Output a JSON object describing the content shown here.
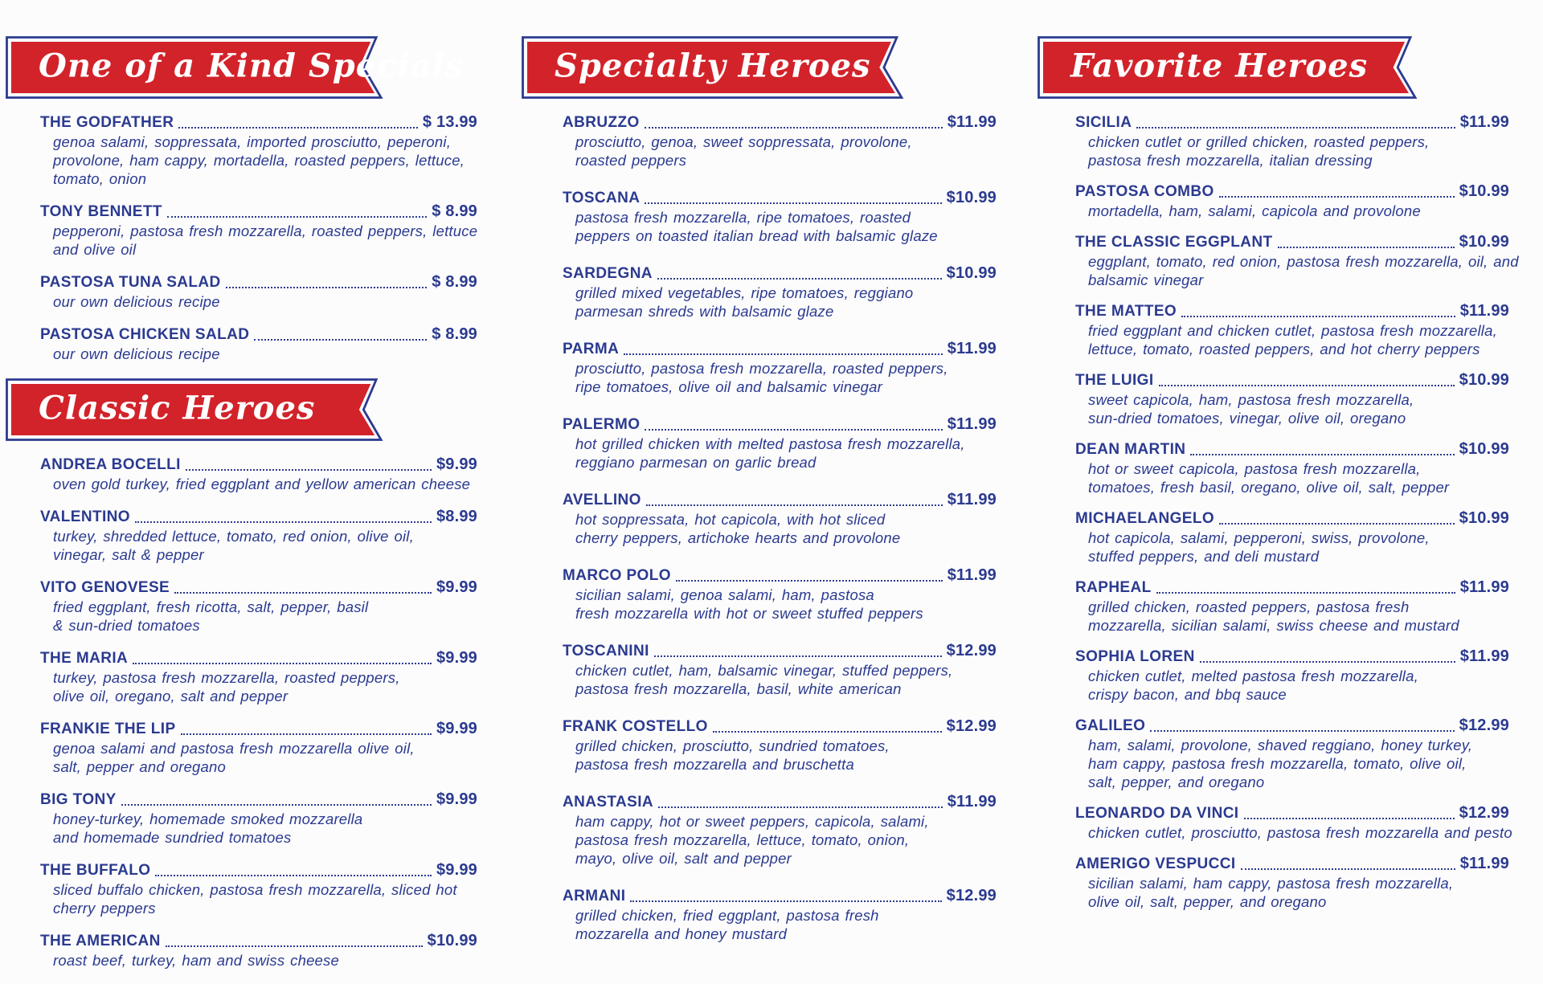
{
  "colors": {
    "red": "#d2232a",
    "navy": "#2b3a8f",
    "banner_text": "#ffffff",
    "background": "#fcfcfd"
  },
  "sections": [
    {
      "title": "One of a Kind Specials",
      "items": [
        {
          "name": "THE GODFATHER",
          "price": "$ 13.99",
          "desc_lines": [
            "genoa salami, soppressata, imported prosciutto, peperoni,",
            "provolone, ham cappy, mortadella, roasted peppers, lettuce,",
            "tomato, onion"
          ]
        },
        {
          "name": "TONY BENNETT",
          "price": "$ 8.99",
          "desc_lines": [
            "pepperoni, pastosa fresh mozzarella, roasted peppers, lettuce",
            "and olive oil"
          ]
        },
        {
          "name": "PASTOSA TUNA SALAD",
          "price": "$ 8.99",
          "desc_lines": [
            "our own delicious recipe"
          ]
        },
        {
          "name": "PASTOSA CHICKEN SALAD",
          "price": "$ 8.99",
          "desc_lines": [
            "our own delicious recipe"
          ]
        }
      ]
    },
    {
      "title": "Classic Heroes",
      "items": [
        {
          "name": "ANDREA BOCELLI",
          "price": "$9.99",
          "desc_lines": [
            "oven gold turkey, fried eggplant and yellow american cheese"
          ]
        },
        {
          "name": "VALENTINO",
          "price": "$8.99",
          "desc_lines": [
            "turkey, shredded lettuce, tomato, red onion, olive oil,",
            "vinegar, salt & pepper"
          ]
        },
        {
          "name": "VITO GENOVESE",
          "price": "$9.99",
          "desc_lines": [
            "fried eggplant, fresh ricotta, salt, pepper, basil",
            "& sun-dried tomatoes"
          ]
        },
        {
          "name": "THE MARIA",
          "price": "$9.99",
          "desc_lines": [
            "turkey, pastosa fresh mozzarella, roasted peppers,",
            "olive oil, oregano, salt and pepper"
          ]
        },
        {
          "name": "FRANKIE THE LIP",
          "price": "$9.99",
          "desc_lines": [
            "genoa salami and pastosa fresh mozzarella olive oil,",
            "salt, pepper and oregano"
          ]
        },
        {
          "name": "BIG TONY",
          "price": "$9.99",
          "desc_lines": [
            "honey-turkey, homemade smoked mozzarella",
            "and homemade sundried tomatoes"
          ]
        },
        {
          "name": "THE BUFFALO",
          "price": "$9.99",
          "desc_lines": [
            "sliced buffalo chicken, pastosa fresh mozzarella, sliced hot",
            "cherry peppers"
          ]
        },
        {
          "name": "THE AMERICAN",
          "price": "$10.99",
          "desc_lines": [
            "roast beef, turkey, ham and swiss cheese"
          ]
        }
      ]
    },
    {
      "title": "Specialty Heroes",
      "items": [
        {
          "name": "ABRUZZO",
          "price": "$11.99",
          "desc_lines": [
            "prosciutto, genoa, sweet soppressata, provolone,",
            "roasted peppers"
          ]
        },
        {
          "name": "TOSCANA",
          "price": "$10.99",
          "desc_lines": [
            "pastosa fresh mozzarella, ripe tomatoes, roasted",
            "peppers on toasted italian bread with balsamic glaze"
          ]
        },
        {
          "name": "SARDEGNA",
          "price": "$10.99",
          "desc_lines": [
            "grilled mixed vegetables, ripe tomatoes, reggiano",
            "parmesan shreds with balsamic glaze"
          ]
        },
        {
          "name": "PARMA",
          "price": "$11.99",
          "desc_lines": [
            "prosciutto, pastosa fresh mozzarella, roasted peppers,",
            "ripe tomatoes, olive oil and balsamic vinegar"
          ]
        },
        {
          "name": "PALERMO",
          "price": "$11.99",
          "desc_lines": [
            "hot grilled chicken with melted pastosa fresh mozzarella,",
            "reggiano parmesan on garlic bread"
          ]
        },
        {
          "name": "AVELLINO",
          "price": "$11.99",
          "desc_lines": [
            "hot soppressata, hot capicola, with hot sliced",
            "cherry peppers, artichoke hearts and provolone"
          ]
        },
        {
          "name": "MARCO POLO",
          "price": "$11.99",
          "desc_lines": [
            "sicilian salami, genoa salami, ham, pastosa",
            "fresh mozzarella with hot or sweet stuffed peppers"
          ]
        },
        {
          "name": "TOSCANINI",
          "price": "$12.99",
          "desc_lines": [
            "chicken cutlet, ham, balsamic vinegar, stuffed peppers,",
            "pastosa fresh mozzarella, basil, white american"
          ]
        },
        {
          "name": "FRANK COSTELLO",
          "price": "$12.99",
          "desc_lines": [
            "grilled chicken, prosciutto, sundried tomatoes,",
            "pastosa fresh mozzarella and bruschetta"
          ]
        },
        {
          "name": "ANASTASIA",
          "price": "$11.99",
          "desc_lines": [
            "ham cappy, hot or sweet peppers, capicola, salami,",
            "pastosa fresh mozzarella, lettuce, tomato, onion,",
            "mayo, olive oil, salt and pepper"
          ]
        },
        {
          "name": "ARMANI",
          "price": "$12.99",
          "desc_lines": [
            "grilled chicken, fried eggplant, pastosa fresh",
            "mozzarella and honey mustard"
          ]
        }
      ]
    },
    {
      "title": "Favorite Heroes",
      "items": [
        {
          "name": "SICILIA",
          "price": "$11.99",
          "desc_lines": [
            "chicken cutlet or grilled chicken, roasted peppers,",
            "pastosa fresh mozzarella, italian dressing"
          ]
        },
        {
          "name": "PASTOSA COMBO",
          "price": "$10.99",
          "desc_lines": [
            "mortadella, ham, salami, capicola and provolone"
          ]
        },
        {
          "name": "THE CLASSIC EGGPLANT",
          "price": "$10.99",
          "desc_lines": [
            "eggplant, tomato, red onion, pastosa fresh mozzarella, oil, and",
            "balsamic vinegar"
          ]
        },
        {
          "name": "THE MATTEO",
          "price": "$11.99",
          "desc_lines": [
            "fried eggplant and chicken cutlet, pastosa fresh mozzarella,",
            "lettuce, tomato, roasted peppers, and hot cherry peppers"
          ]
        },
        {
          "name": "THE LUIGI",
          "price": "$10.99",
          "desc_lines": [
            "sweet capicola, ham, pastosa fresh mozzarella,",
            "sun-dried tomatoes, vinegar, olive oil, oregano"
          ]
        },
        {
          "name": "DEAN MARTIN",
          "price": "$10.99",
          "desc_lines": [
            "hot or sweet capicola, pastosa fresh mozzarella,",
            "tomatoes, fresh basil, oregano, olive oil, salt, pepper"
          ]
        },
        {
          "name": "MICHAELANGELO",
          "price": "$10.99",
          "desc_lines": [
            "hot capicola, salami, pepperoni, swiss, provolone,",
            "stuffed peppers, and deli mustard"
          ]
        },
        {
          "name": "RAPHEAL",
          "price": "$11.99",
          "desc_lines": [
            "grilled chicken, roasted peppers, pastosa fresh",
            "mozzarella, sicilian salami, swiss cheese and mustard"
          ]
        },
        {
          "name": "SOPHIA LOREN",
          "price": "$11.99",
          "desc_lines": [
            "chicken cutlet, melted pastosa fresh mozzarella,",
            "crispy bacon, and bbq sauce"
          ]
        },
        {
          "name": "GALILEO",
          "price": "$12.99",
          "desc_lines": [
            "ham, salami, provolone, shaved reggiano, honey turkey,",
            "ham cappy, pastosa fresh mozzarella, tomato, olive oil,",
            "salt, pepper, and oregano"
          ]
        },
        {
          "name": "LEONARDO DA VINCI",
          "price": "$12.99",
          "desc_lines": [
            "chicken cutlet, prosciutto, pastosa fresh mozzarella and pesto"
          ]
        },
        {
          "name": "AMERIGO VESPUCCI",
          "price": "$11.99",
          "desc_lines": [
            "sicilian salami, ham cappy, pastosa fresh mozzarella,",
            "olive oil, salt, pepper, and oregano"
          ]
        }
      ]
    }
  ]
}
